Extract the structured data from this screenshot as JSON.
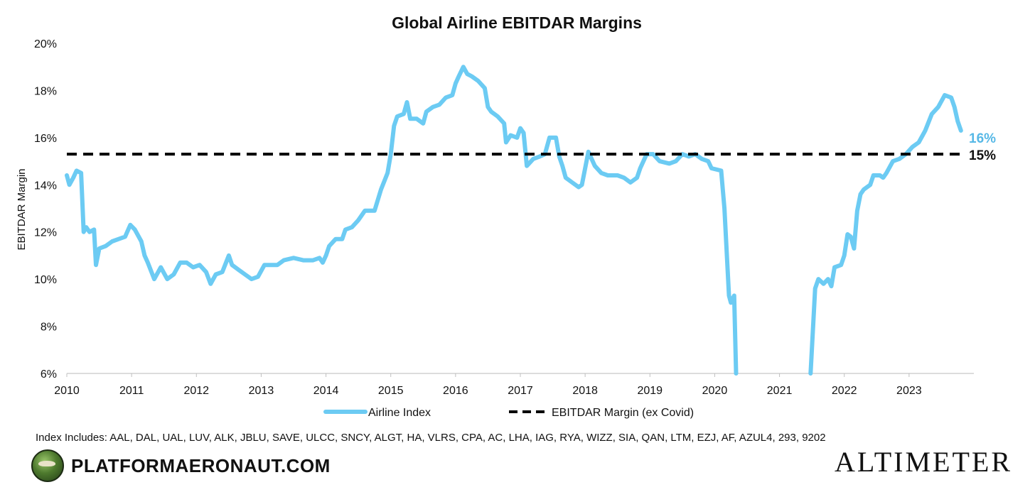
{
  "chart_data": {
    "type": "line",
    "title": "Global Airline EBITDAR Margins",
    "ylabel": "EBITDAR Margin",
    "xlabel": "",
    "xlim": [
      2010,
      2024
    ],
    "ylim": [
      6,
      20
    ],
    "x_ticks": [
      "2010",
      "2011",
      "2012",
      "2013",
      "2014",
      "2015",
      "2016",
      "2017",
      "2018",
      "2019",
      "2020",
      "2021",
      "2022",
      "2023"
    ],
    "y_ticks": [
      "6%",
      "8%",
      "10%",
      "12%",
      "14%",
      "16%",
      "18%",
      "20%"
    ],
    "grid": false,
    "legend_position": "bottom",
    "series": [
      {
        "name": "Airline Index",
        "color": "#6ccbf3",
        "end_label": "16%",
        "points": [
          [
            2010.0,
            14.4
          ],
          [
            2010.04,
            14.0
          ],
          [
            2010.1,
            14.3
          ],
          [
            2010.15,
            14.6
          ],
          [
            2010.22,
            14.5
          ],
          [
            2010.26,
            12.0
          ],
          [
            2010.3,
            12.2
          ],
          [
            2010.35,
            12.0
          ],
          [
            2010.42,
            12.1
          ],
          [
            2010.45,
            10.6
          ],
          [
            2010.5,
            11.3
          ],
          [
            2010.6,
            11.4
          ],
          [
            2010.7,
            11.6
          ],
          [
            2010.8,
            11.7
          ],
          [
            2010.9,
            11.8
          ],
          [
            2010.98,
            12.3
          ],
          [
            2011.05,
            12.1
          ],
          [
            2011.15,
            11.6
          ],
          [
            2011.2,
            11.0
          ],
          [
            2011.25,
            10.7
          ],
          [
            2011.35,
            10.0
          ],
          [
            2011.45,
            10.5
          ],
          [
            2011.55,
            10.0
          ],
          [
            2011.65,
            10.2
          ],
          [
            2011.75,
            10.7
          ],
          [
            2011.85,
            10.7
          ],
          [
            2011.95,
            10.5
          ],
          [
            2012.05,
            10.6
          ],
          [
            2012.15,
            10.3
          ],
          [
            2012.22,
            9.8
          ],
          [
            2012.3,
            10.2
          ],
          [
            2012.4,
            10.3
          ],
          [
            2012.5,
            11.0
          ],
          [
            2012.55,
            10.6
          ],
          [
            2012.65,
            10.4
          ],
          [
            2012.75,
            10.2
          ],
          [
            2012.85,
            10.0
          ],
          [
            2012.95,
            10.1
          ],
          [
            2013.05,
            10.6
          ],
          [
            2013.15,
            10.6
          ],
          [
            2013.25,
            10.6
          ],
          [
            2013.35,
            10.8
          ],
          [
            2013.5,
            10.9
          ],
          [
            2013.65,
            10.8
          ],
          [
            2013.8,
            10.8
          ],
          [
            2013.9,
            10.9
          ],
          [
            2013.95,
            10.7
          ],
          [
            2014.0,
            11.0
          ],
          [
            2014.05,
            11.4
          ],
          [
            2014.15,
            11.7
          ],
          [
            2014.25,
            11.7
          ],
          [
            2014.3,
            12.1
          ],
          [
            2014.4,
            12.2
          ],
          [
            2014.5,
            12.5
          ],
          [
            2014.6,
            12.9
          ],
          [
            2014.75,
            12.9
          ],
          [
            2014.85,
            13.8
          ],
          [
            2014.95,
            14.5
          ],
          [
            2015.0,
            15.3
          ],
          [
            2015.05,
            16.5
          ],
          [
            2015.1,
            16.9
          ],
          [
            2015.2,
            17.0
          ],
          [
            2015.25,
            17.5
          ],
          [
            2015.3,
            16.8
          ],
          [
            2015.4,
            16.8
          ],
          [
            2015.5,
            16.6
          ],
          [
            2015.55,
            17.1
          ],
          [
            2015.65,
            17.3
          ],
          [
            2015.75,
            17.4
          ],
          [
            2015.85,
            17.7
          ],
          [
            2015.95,
            17.8
          ],
          [
            2016.0,
            18.3
          ],
          [
            2016.05,
            18.6
          ],
          [
            2016.12,
            19.0
          ],
          [
            2016.18,
            18.7
          ],
          [
            2016.25,
            18.6
          ],
          [
            2016.35,
            18.4
          ],
          [
            2016.45,
            18.1
          ],
          [
            2016.5,
            17.3
          ],
          [
            2016.55,
            17.1
          ],
          [
            2016.65,
            16.9
          ],
          [
            2016.75,
            16.6
          ],
          [
            2016.78,
            15.8
          ],
          [
            2016.85,
            16.1
          ],
          [
            2016.95,
            16.0
          ],
          [
            2017.0,
            16.4
          ],
          [
            2017.05,
            16.2
          ],
          [
            2017.1,
            14.8
          ],
          [
            2017.2,
            15.1
          ],
          [
            2017.3,
            15.2
          ],
          [
            2017.38,
            15.3
          ],
          [
            2017.45,
            16.0
          ],
          [
            2017.55,
            16.0
          ],
          [
            2017.6,
            15.2
          ],
          [
            2017.65,
            14.8
          ],
          [
            2017.7,
            14.3
          ],
          [
            2017.8,
            14.1
          ],
          [
            2017.9,
            13.9
          ],
          [
            2017.95,
            14.0
          ],
          [
            2018.05,
            15.4
          ],
          [
            2018.15,
            14.8
          ],
          [
            2018.25,
            14.5
          ],
          [
            2018.35,
            14.4
          ],
          [
            2018.5,
            14.4
          ],
          [
            2018.6,
            14.3
          ],
          [
            2018.7,
            14.1
          ],
          [
            2018.8,
            14.3
          ],
          [
            2018.85,
            14.7
          ],
          [
            2018.95,
            15.3
          ],
          [
            2019.05,
            15.3
          ],
          [
            2019.15,
            15.0
          ],
          [
            2019.3,
            14.9
          ],
          [
            2019.4,
            15.0
          ],
          [
            2019.5,
            15.3
          ],
          [
            2019.6,
            15.2
          ],
          [
            2019.7,
            15.3
          ],
          [
            2019.8,
            15.1
          ],
          [
            2019.9,
            15.0
          ],
          [
            2019.95,
            14.7
          ],
          [
            2020.1,
            14.6
          ],
          [
            2020.15,
            13.0
          ],
          [
            2020.22,
            9.3
          ],
          [
            2020.25,
            9.0
          ],
          [
            2020.3,
            9.3
          ],
          [
            2020.33,
            6.0
          ]
        ]
      },
      {
        "name": "Airline Index",
        "color": "#6ccbf3",
        "show_in_legend": false,
        "points": [
          [
            2021.48,
            6.0
          ],
          [
            2021.55,
            9.6
          ],
          [
            2021.6,
            10.0
          ],
          [
            2021.68,
            9.8
          ],
          [
            2021.75,
            10.0
          ],
          [
            2021.8,
            9.7
          ],
          [
            2021.85,
            10.5
          ],
          [
            2021.95,
            10.6
          ],
          [
            2022.0,
            11.0
          ],
          [
            2022.05,
            11.9
          ],
          [
            2022.1,
            11.8
          ],
          [
            2022.15,
            11.3
          ],
          [
            2022.2,
            12.9
          ],
          [
            2022.25,
            13.6
          ],
          [
            2022.3,
            13.8
          ],
          [
            2022.4,
            14.0
          ],
          [
            2022.45,
            14.4
          ],
          [
            2022.55,
            14.4
          ],
          [
            2022.6,
            14.3
          ],
          [
            2022.65,
            14.5
          ],
          [
            2022.75,
            15.0
          ],
          [
            2022.85,
            15.1
          ],
          [
            2022.95,
            15.3
          ],
          [
            2023.05,
            15.6
          ],
          [
            2023.15,
            15.8
          ],
          [
            2023.25,
            16.3
          ],
          [
            2023.35,
            17.0
          ],
          [
            2023.45,
            17.3
          ],
          [
            2023.55,
            17.8
          ],
          [
            2023.65,
            17.7
          ],
          [
            2023.7,
            17.3
          ],
          [
            2023.75,
            16.7
          ],
          [
            2023.8,
            16.3
          ]
        ]
      },
      {
        "name": "EBITDAR Margin (ex Covid)",
        "color": "#000000",
        "dashed": true,
        "end_label": "15%",
        "points": [
          [
            2010.0,
            15.3
          ],
          [
            2023.8,
            15.3
          ]
        ]
      }
    ]
  },
  "footer": {
    "note": "Index Includes: AAL, DAL, UAL, LUV, ALK, JBLU, SAVE, ULCC, SNCY, ALGT, HA, VLRS, CPA, AC, LHA, IAG, RYA, WIZZ, SIA, QAN, LTM, EZJ, AF, AZUL4, 293, 9202",
    "brand_left": "PLATFORMAERONAUT.COM",
    "brand_right": "ALTIMETER"
  }
}
